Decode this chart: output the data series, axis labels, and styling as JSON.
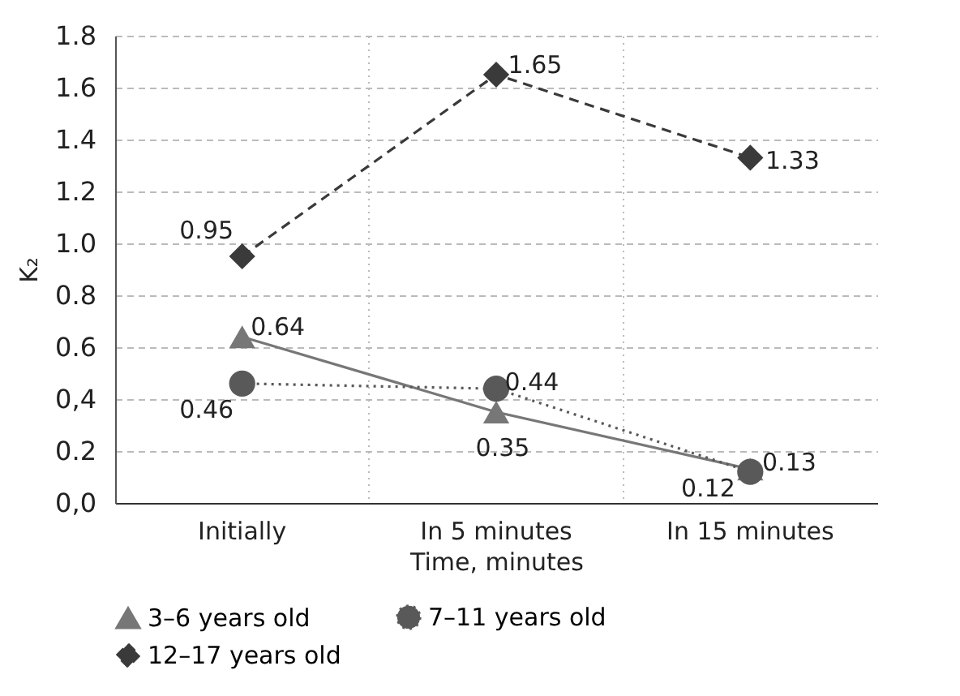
{
  "chart_data": {
    "type": "line",
    "xlabel": "Time, minutes",
    "ylabel": "K₂",
    "categories": [
      "Initially",
      "In 5 minutes",
      "In 15 minutes"
    ],
    "series": [
      {
        "name": "3–6 years old",
        "color": "#777777",
        "values": [
          0.64,
          0.35,
          0.13
        ],
        "marker": "triangle",
        "line_style": "solid"
      },
      {
        "name": "7–11 years old",
        "color": "#595959",
        "values": [
          0.46,
          0.44,
          0.12
        ],
        "marker": "circle",
        "line_style": "dotted"
      },
      {
        "name": "12–17 years old",
        "color": "#3a3a3a",
        "values": [
          0.95,
          1.65,
          1.33
        ],
        "marker": "diamond",
        "line_style": "dashed"
      }
    ],
    "ylim": [
      0,
      1.8
    ],
    "yticks": [
      {
        "value": 0,
        "label": "0,0"
      },
      0.2,
      {
        "value": 0.4,
        "label": "0,4"
      },
      0.6,
      0.8,
      {
        "value": 1,
        "label": "1.0"
      },
      1.2,
      1.4,
      1.6,
      1.8
    ],
    "grid": true,
    "legend": "bottom",
    "data_labels": true
  }
}
